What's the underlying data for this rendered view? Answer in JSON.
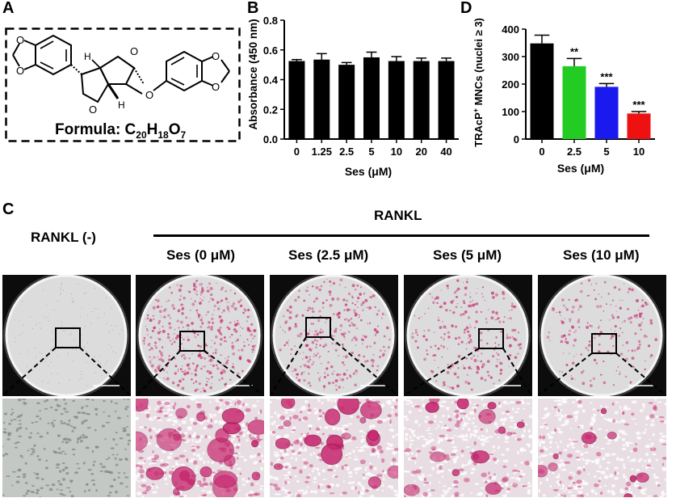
{
  "panels": {
    "A": "A",
    "B": "B",
    "C": "C",
    "D": "D"
  },
  "structure": {
    "formula_prefix": "Formula: C",
    "formula_sub1": "20",
    "formula_h": "H",
    "formula_sub2": "18",
    "formula_o": "O",
    "formula_sub3": "7",
    "stereo_h": "H",
    "ring_o": "O",
    "bridge_o": "O"
  },
  "chart_data": [
    {
      "type": "bar",
      "panel": "B",
      "categories": [
        "0",
        "1.25",
        "2.5",
        "5",
        "10",
        "20",
        "40"
      ],
      "values": [
        0.525,
        0.535,
        0.5,
        0.55,
        0.525,
        0.525,
        0.525
      ],
      "errors": [
        0.01,
        0.04,
        0.015,
        0.035,
        0.03,
        0.02,
        0.02
      ],
      "xlabel": "Ses (μM)",
      "ylabel": "Absorbance (450 nm)",
      "ylim": [
        0,
        0.8
      ],
      "yticks": [
        "0.0",
        "0.2",
        "0.4",
        "0.6",
        "0.8"
      ],
      "colors": [
        "#000000"
      ]
    },
    {
      "type": "bar",
      "panel": "D",
      "categories": [
        "0",
        "2.5",
        "5",
        "10"
      ],
      "values": [
        348,
        265,
        190,
        93
      ],
      "errors": [
        30,
        28,
        12,
        7
      ],
      "significance": [
        "",
        "**",
        "***",
        "***"
      ],
      "colors": [
        "#000000",
        "#22cc22",
        "#1a1aee",
        "#ee1111"
      ],
      "xlabel": "Ses (μM)",
      "ylabel_main": "TRAcP",
      "ylabel_sup": "+",
      "ylabel_rest": " MNCs (nuclei ≥ 3)",
      "ylim": [
        0,
        400
      ],
      "yticks": [
        "0",
        "100",
        "200",
        "300",
        "400"
      ]
    }
  ],
  "panelC": {
    "group_label": "RANKL",
    "negative_label": "RANKL (-)",
    "columns": [
      "Ses (0 μM)",
      "Ses (2.5 μM)",
      "Ses (5 μM)",
      "Ses (10 μM)"
    ],
    "stain_level": [
      0,
      1.0,
      0.75,
      0.6,
      0.45
    ],
    "stain_color": "#c8266e"
  }
}
